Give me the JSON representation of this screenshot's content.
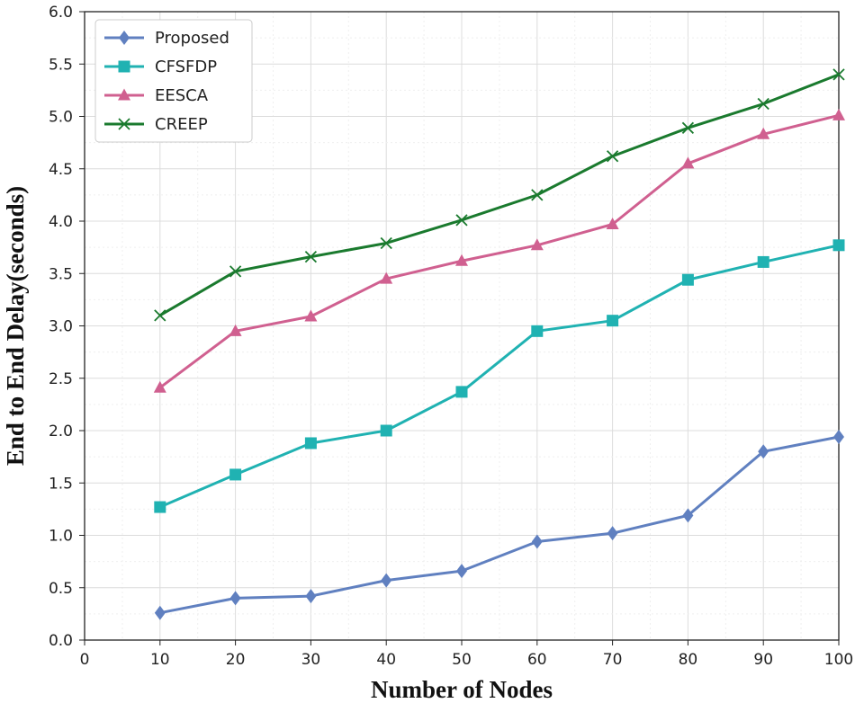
{
  "chart_data": {
    "type": "line",
    "xlabel": "Number of Nodes",
    "ylabel": "End to End Delay(seconds)",
    "xlim": [
      0,
      100
    ],
    "ylim": [
      0,
      6
    ],
    "xticks": [
      0,
      10,
      20,
      30,
      40,
      50,
      60,
      70,
      80,
      90,
      100
    ],
    "yticks": [
      0.0,
      0.5,
      1.0,
      1.5,
      2.0,
      2.5,
      3.0,
      3.5,
      4.0,
      4.5,
      5.0,
      5.5,
      6.0
    ],
    "grid": true,
    "legend_position": "top-left",
    "x": [
      10,
      20,
      30,
      40,
      50,
      60,
      70,
      80,
      90,
      100
    ],
    "series": [
      {
        "name": "Proposed",
        "color": "#6080c0",
        "marker": "diamond",
        "values": [
          0.26,
          0.4,
          0.42,
          0.57,
          0.66,
          0.94,
          1.02,
          1.19,
          1.8,
          1.94
        ]
      },
      {
        "name": "CFSFDP",
        "color": "#20b2b2",
        "marker": "square",
        "values": [
          1.27,
          1.58,
          1.88,
          2.0,
          2.37,
          2.95,
          3.05,
          3.44,
          3.61,
          3.77
        ]
      },
      {
        "name": "EESCA",
        "color": "#d06090",
        "marker": "triangle",
        "values": [
          2.41,
          2.95,
          3.09,
          3.45,
          3.62,
          3.77,
          3.97,
          4.55,
          4.83,
          5.01
        ]
      },
      {
        "name": "CREEP",
        "color": "#1a7a2e",
        "marker": "x",
        "values": [
          3.1,
          3.52,
          3.66,
          3.79,
          4.01,
          4.25,
          4.62,
          4.89,
          5.12,
          5.4
        ]
      }
    ]
  }
}
